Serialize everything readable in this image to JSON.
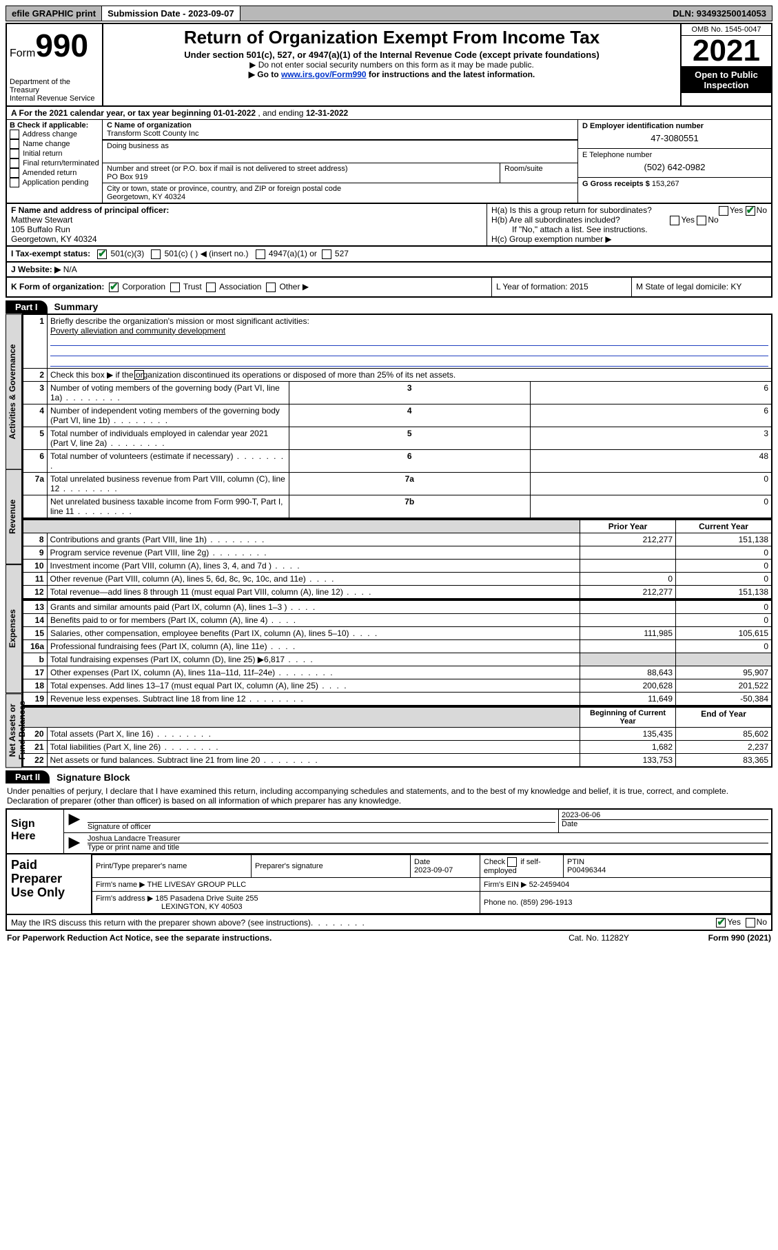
{
  "topbar": {
    "efile": "efile GRAPHIC print",
    "submission_label": "Submission Date - 2023-09-07",
    "dln": "DLN: 93493250014053"
  },
  "header": {
    "form_label": "Form",
    "form_no": "990",
    "dept": "Department of the Treasury",
    "irs": "Internal Revenue Service",
    "title": "Return of Organization Exempt From Income Tax",
    "sub": "Under section 501(c), 527, or 4947(a)(1) of the Internal Revenue Code (except private foundations)",
    "note1": "▶ Do not enter social security numbers on this form as it may be made public.",
    "note2_pre": "▶ Go to ",
    "note2_link": "www.irs.gov/Form990",
    "note2_post": " for instructions and the latest information.",
    "omb": "OMB No. 1545-0047",
    "year": "2021",
    "open": "Open to Public Inspection"
  },
  "section_a": {
    "text_pre": "A For the 2021 calendar year, or tax year beginning ",
    "begin": "01-01-2022",
    "mid": " , and ending ",
    "end": "12-31-2022"
  },
  "section_b": {
    "label": "B Check if applicable:",
    "opts": [
      "Address change",
      "Name change",
      "Initial return",
      "Final return/terminated",
      "Amended return",
      "Application pending"
    ]
  },
  "section_c": {
    "label": "C Name of organization",
    "name": "Transform Scott County Inc",
    "dba_label": "Doing business as",
    "street_label": "Number and street (or P.O. box if mail is not delivered to street address)",
    "room_label": "Room/suite",
    "street": "PO Box 919",
    "city_label": "City or town, state or province, country, and ZIP or foreign postal code",
    "city": "Georgetown, KY  40324"
  },
  "section_d": {
    "label": "D Employer identification number",
    "ein": "47-3080551",
    "e_label": "E Telephone number",
    "phone": "(502) 642-0982",
    "g_label": "G Gross receipts $ ",
    "gross": "153,267"
  },
  "section_f": {
    "label": "F Name and address of principal officer:",
    "name": "Matthew Stewart",
    "addr1": "105 Buffalo Run",
    "addr2": "Georgetown, KY  40324"
  },
  "section_h": {
    "a": "H(a)  Is this a group return for subordinates?",
    "b": "H(b)  Are all subordinates included?",
    "note": "If \"No,\" attach a list. See instructions.",
    "c": "H(c)  Group exemption number ▶"
  },
  "section_i": {
    "label": "I   Tax-exempt status:",
    "o1": "501(c)(3)",
    "o2": "501(c) (  ) ◀ (insert no.)",
    "o3": "4947(a)(1) or",
    "o4": "527"
  },
  "section_j": {
    "label": "J   Website: ▶",
    "val": "N/A"
  },
  "section_k": {
    "label": "K Form of organization:",
    "o1": "Corporation",
    "o2": "Trust",
    "o3": "Association",
    "o4": "Other ▶",
    "l": "L Year of formation: 2015",
    "m": "M State of legal domicile: KY"
  },
  "part1": {
    "tab": "Part I",
    "title": "Summary"
  },
  "summary": {
    "l1": "Briefly describe the organization's mission or most significant activities:",
    "mission": "Poverty alleviation and community development",
    "l2": "Check this box ▶        if the organization discontinued its operations or disposed of more than 25% of its net assets.",
    "rows_gov": [
      {
        "n": "3",
        "t": "Number of voting members of the governing body (Part VI, line 1a)",
        "k": "3",
        "v": "6"
      },
      {
        "n": "4",
        "t": "Number of independent voting members of the governing body (Part VI, line 1b)",
        "k": "4",
        "v": "6"
      },
      {
        "n": "5",
        "t": "Total number of individuals employed in calendar year 2021 (Part V, line 2a)",
        "k": "5",
        "v": "3"
      },
      {
        "n": "6",
        "t": "Total number of volunteers (estimate if necessary)",
        "k": "6",
        "v": "48"
      },
      {
        "n": "7a",
        "t": "Total unrelated business revenue from Part VIII, column (C), line 12",
        "k": "7a",
        "v": "0"
      },
      {
        "n": "",
        "t": "Net unrelated business taxable income from Form 990-T, Part I, line 11",
        "k": "7b",
        "v": "0"
      }
    ],
    "py": "Prior Year",
    "cy": "Current Year",
    "rows_rev": [
      {
        "n": "8",
        "t": "Contributions and grants (Part VIII, line 1h)",
        "p": "212,277",
        "c": "151,138"
      },
      {
        "n": "9",
        "t": "Program service revenue (Part VIII, line 2g)",
        "p": "",
        "c": "0"
      },
      {
        "n": "10",
        "t": "Investment income (Part VIII, column (A), lines 3, 4, and 7d )",
        "p": "",
        "c": "0"
      },
      {
        "n": "11",
        "t": "Other revenue (Part VIII, column (A), lines 5, 6d, 8c, 9c, 10c, and 11e)",
        "p": "0",
        "c": "0"
      },
      {
        "n": "12",
        "t": "Total revenue—add lines 8 through 11 (must equal Part VIII, column (A), line 12)",
        "p": "212,277",
        "c": "151,138"
      }
    ],
    "rows_exp": [
      {
        "n": "13",
        "t": "Grants and similar amounts paid (Part IX, column (A), lines 1–3 )",
        "p": "",
        "c": "0"
      },
      {
        "n": "14",
        "t": "Benefits paid to or for members (Part IX, column (A), line 4)",
        "p": "",
        "c": "0"
      },
      {
        "n": "15",
        "t": "Salaries, other compensation, employee benefits (Part IX, column (A), lines 5–10)",
        "p": "111,985",
        "c": "105,615"
      },
      {
        "n": "16a",
        "t": "Professional fundraising fees (Part IX, column (A), line 11e)",
        "p": "",
        "c": "0"
      },
      {
        "n": "b",
        "t": "Total fundraising expenses (Part IX, column (D), line 25) ▶6,817",
        "p": "GREY",
        "c": "GREY"
      },
      {
        "n": "17",
        "t": "Other expenses (Part IX, column (A), lines 11a–11d, 11f–24e)",
        "p": "88,643",
        "c": "95,907"
      },
      {
        "n": "18",
        "t": "Total expenses. Add lines 13–17 (must equal Part IX, column (A), line 25)",
        "p": "200,628",
        "c": "201,522"
      },
      {
        "n": "19",
        "t": "Revenue less expenses. Subtract line 18 from line 12",
        "p": "11,649",
        "c": "-50,384"
      }
    ],
    "boy": "Beginning of Current Year",
    "eoy": "End of Year",
    "rows_net": [
      {
        "n": "20",
        "t": "Total assets (Part X, line 16)",
        "p": "135,435",
        "c": "85,602"
      },
      {
        "n": "21",
        "t": "Total liabilities (Part X, line 26)",
        "p": "1,682",
        "c": "2,237"
      },
      {
        "n": "22",
        "t": "Net assets or fund balances. Subtract line 21 from line 20",
        "p": "133,753",
        "c": "83,365"
      }
    ]
  },
  "part2": {
    "tab": "Part II",
    "title": "Signature Block"
  },
  "penalty": "Under penalties of perjury, I declare that I have examined this return, including accompanying schedules and statements, and to the best of my knowledge and belief, it is true, correct, and complete. Declaration of preparer (other than officer) is based on all information of which preparer has any knowledge.",
  "sign": {
    "here": "Sign Here",
    "sig_label": "Signature of officer",
    "date": "2023-06-06",
    "date_label": "Date",
    "name": "Joshua Landacre Treasurer",
    "name_label": "Type or print name and title"
  },
  "prep": {
    "title": "Paid Preparer Use Only",
    "h1": "Print/Type preparer's name",
    "h2": "Preparer's signature",
    "h3": "Date",
    "date": "2023-09-07",
    "h4_pre": "Check",
    "h4_post": "if self-employed",
    "h5": "PTIN",
    "ptin": "P00496344",
    "firm_name_l": "Firm's name    ▶",
    "firm_name": "THE LIVESAY GROUP PLLC",
    "firm_ein_l": "Firm's EIN ▶",
    "firm_ein": "52-2459404",
    "firm_addr_l": "Firm's address ▶",
    "firm_addr1": "185 Pasadena Drive Suite 255",
    "firm_addr2": "LEXINGTON, KY  40503",
    "phone_l": "Phone no.",
    "phone": "(859) 296-1913"
  },
  "may_discuss": "May the IRS discuss this return with the preparer shown above? (see instructions)",
  "footer": {
    "l": "For Paperwork Reduction Act Notice, see the separate instructions.",
    "m": "Cat. No. 11282Y",
    "r": "Form 990 (2021)"
  },
  "yes": "Yes",
  "no": "No",
  "side_labels": {
    "gov": "Activities & Governance",
    "rev": "Revenue",
    "exp": "Expenses",
    "net": "Net Assets or Fund Balances"
  }
}
